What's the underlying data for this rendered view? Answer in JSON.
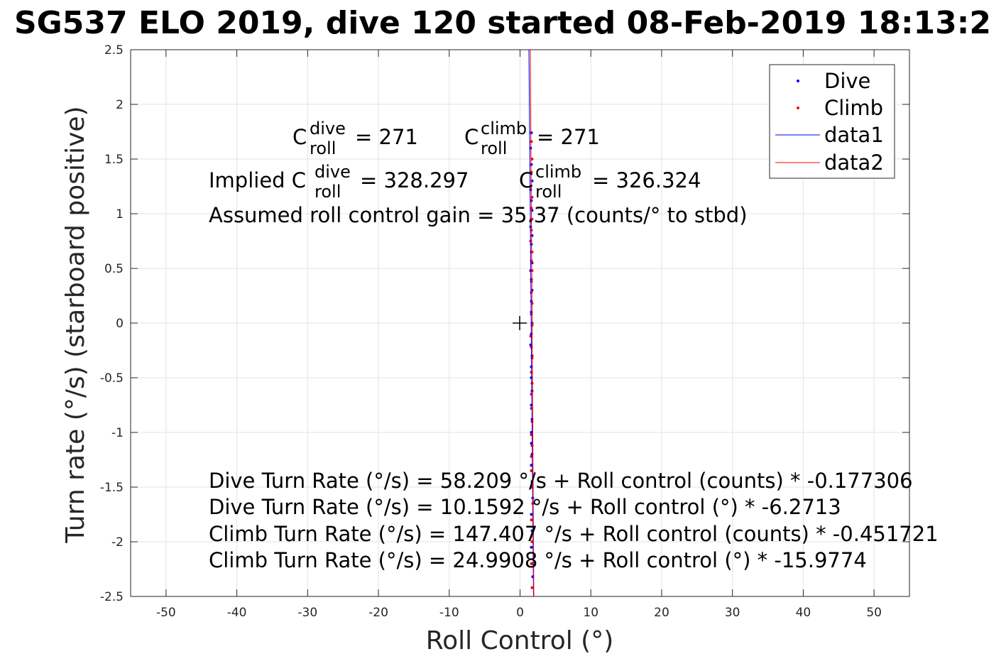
{
  "chart_data": {
    "type": "scatter",
    "title": "SG537 ELO 2019, dive 120 started 08-Feb-2019 18:13:2",
    "xlabel": "Roll Control (°)",
    "ylabel": "Turn rate (°/s) (starboard positive)",
    "xlim": [
      -55,
      55
    ],
    "ylim": [
      -2.5,
      2.5
    ],
    "xticks": [
      -50,
      -40,
      -30,
      -20,
      -10,
      0,
      10,
      20,
      30,
      40,
      50
    ],
    "xtick_labels": [
      "-50",
      "-40",
      "-30",
      "-20",
      "-10",
      "0",
      "10",
      "20",
      "30",
      "40",
      "50"
    ],
    "yticks": [
      -2.5,
      -2,
      -1.5,
      -1,
      -0.5,
      0,
      0.5,
      1,
      1.5,
      2,
      2.5
    ],
    "ytick_labels": [
      "-2.5",
      "-2",
      "-1.5",
      "-1",
      "-0.5",
      "0",
      "0.5",
      "1",
      "1.5",
      "2",
      "2.5"
    ],
    "grid": true,
    "legend_position": "top-right",
    "series": [
      {
        "name": "Dive",
        "kind": "points",
        "color": "#0000ff",
        "x": [
          1.6,
          1.5,
          1.6,
          1.7,
          1.5,
          1.6,
          1.7,
          1.6,
          1.5,
          1.7,
          1.6,
          1.6,
          1.7,
          1.5,
          1.6,
          1.7,
          1.6,
          1.6,
          1.7,
          1.6,
          1.5,
          1.7,
          1.6,
          1.6,
          1.7,
          1.6,
          1.7,
          1.6,
          1.6,
          1.7,
          1.6,
          1.7,
          1.8,
          1.6,
          1.7,
          1.6,
          1.7,
          1.8
        ],
        "y": [
          1.74,
          1.6,
          1.45,
          1.3,
          1.22,
          1.12,
          1.03,
          0.95,
          0.88,
          0.8,
          0.72,
          0.65,
          0.55,
          0.48,
          0.4,
          0.3,
          0.2,
          0.1,
          0.0,
          -0.1,
          -0.2,
          -0.3,
          -0.4,
          -0.5,
          -0.62,
          -0.75,
          -0.88,
          -1.0,
          -1.1,
          -1.2,
          -1.3,
          -1.45,
          -1.6,
          -1.75,
          -1.9,
          -2.05,
          -2.2,
          -2.32
        ]
      },
      {
        "name": "Climb",
        "kind": "points",
        "color": "#ff0000",
        "x": [
          1.6,
          1.7,
          1.6,
          1.5,
          1.7,
          1.6,
          1.7,
          1.6,
          1.5,
          1.7,
          1.6,
          1.7,
          1.6,
          1.6,
          1.7,
          1.6,
          1.7,
          1.5,
          1.6,
          1.7,
          1.6,
          1.7,
          1.6,
          1.6,
          1.7,
          1.6,
          1.7,
          1.6,
          1.6,
          1.7,
          1.8,
          1.6,
          1.7,
          1.6,
          1.7
        ],
        "y": [
          1.66,
          1.5,
          1.38,
          1.25,
          1.15,
          1.05,
          0.95,
          0.85,
          0.75,
          0.65,
          0.57,
          0.48,
          0.38,
          0.28,
          0.18,
          0.08,
          -0.02,
          -0.12,
          -0.22,
          -0.32,
          -0.45,
          -0.55,
          -0.65,
          -0.78,
          -0.9,
          -1.02,
          -1.12,
          -1.22,
          -1.35,
          -1.5,
          -1.65,
          -1.8,
          -2.0,
          -2.2,
          -2.42
        ]
      },
      {
        "name": "data1",
        "kind": "line",
        "color": "#0000ff",
        "x": [
          1.25,
          1.9
        ],
        "y": [
          2.5,
          -2.5
        ]
      },
      {
        "name": "data2",
        "kind": "line",
        "color": "#ff0000",
        "x": [
          1.45,
          1.95
        ],
        "y": [
          2.5,
          -2.5
        ]
      }
    ],
    "marker": {
      "x": 0,
      "y": 0,
      "symbol": "+"
    },
    "annotations": {
      "c_dive_base": "C",
      "c_dive_sup": "dive",
      "c_dive_sub": "roll",
      "c_dive_val": "= 271",
      "c_climb_base": "C",
      "c_climb_sup": "climb",
      "c_climb_sub": "roll",
      "c_climb_val": "= 271",
      "implied_prefix": "Implied C",
      "implied_dive_sup": "dive",
      "implied_dive_sub": "roll",
      "implied_dive_val": "= 328.297",
      "implied_climb_base": "C",
      "implied_climb_sup": "climb",
      "implied_climb_sub": "roll",
      "implied_climb_val": "= 326.324",
      "gain": "Assumed roll control gain = 35.37 (counts/° to stbd)",
      "eq1": "Dive Turn Rate (°/s) = 58.209 °/s + Roll control (counts) * -0.177306",
      "eq2": "Dive Turn Rate (°/s) = 10.1592 °/s + Roll control (°) * -6.2713",
      "eq3": "Climb Turn Rate (°/s) = 147.407 °/s + Roll control (counts) * -0.451721",
      "eq4": "Climb Turn Rate (°/s) = 24.9908 °/s + Roll control (°) * -15.9774"
    }
  }
}
